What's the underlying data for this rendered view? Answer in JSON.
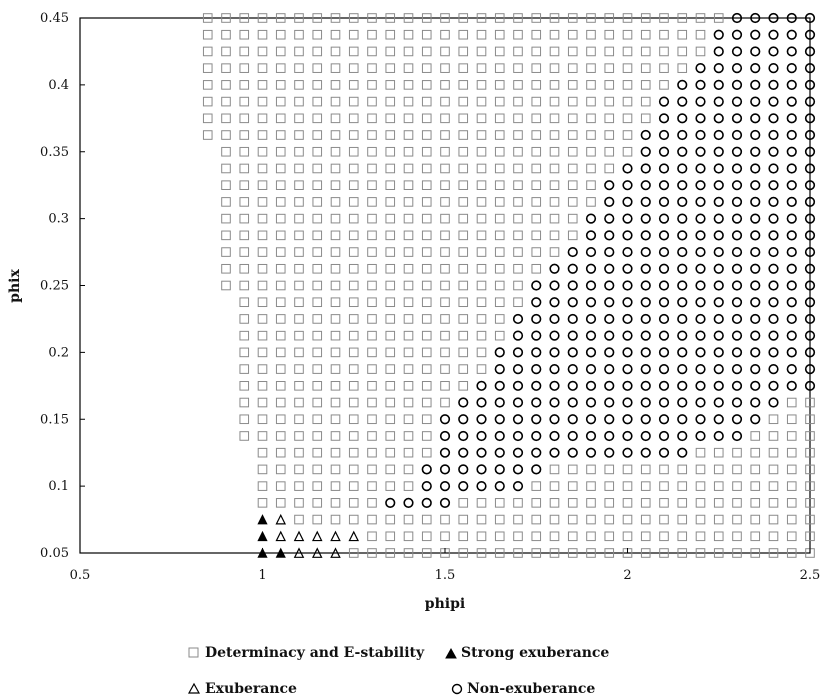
{
  "chart_data": {
    "type": "scatter",
    "title": "",
    "xlabel": "phipi",
    "ylabel": "phix",
    "xlim": [
      0.5,
      2.5
    ],
    "ylim": [
      0.05,
      0.45
    ],
    "xticks": [
      "0.5",
      "1",
      "1.5",
      "2",
      "2.5"
    ],
    "yticks": [
      "0.05",
      "0.1",
      "0.15",
      "0.2",
      "0.25",
      "0.3",
      "0.35",
      "0.4",
      "0.45"
    ],
    "grid": false,
    "legend_position": "bottom",
    "grid_spec": {
      "x_start": 0.85,
      "x_step": 0.05,
      "y_start": 0.05,
      "y_step": 0.0125
    },
    "series": [
      {
        "name": "Determinacy and E-stability",
        "marker": "square",
        "color": "#8a8a8a"
      },
      {
        "name": "Strong exuberance",
        "marker": "filled-triangle",
        "color": "#000000"
      },
      {
        "name": "Exuberance",
        "marker": "triangle",
        "color": "#000000"
      },
      {
        "name": "Non-exuberance",
        "marker": "circle",
        "color": "#000000"
      }
    ],
    "regions": {
      "determinacy_min_x": [
        [
          0.05,
          1.0
        ],
        [
          0.0625,
          1.0
        ],
        [
          0.075,
          1.0
        ],
        [
          0.0875,
          1.0
        ],
        [
          0.1,
          1.0
        ],
        [
          0.1125,
          1.0
        ],
        [
          0.125,
          1.0
        ],
        [
          0.1375,
          0.95
        ],
        [
          0.15,
          0.95
        ],
        [
          0.1625,
          0.95
        ],
        [
          0.175,
          0.95
        ],
        [
          0.1875,
          0.95
        ],
        [
          0.2,
          0.95
        ],
        [
          0.2125,
          0.95
        ],
        [
          0.225,
          0.95
        ],
        [
          0.2375,
          0.95
        ],
        [
          0.25,
          0.9
        ],
        [
          0.2625,
          0.9
        ],
        [
          0.275,
          0.9
        ],
        [
          0.2875,
          0.9
        ],
        [
          0.3,
          0.9
        ],
        [
          0.3125,
          0.9
        ],
        [
          0.325,
          0.9
        ],
        [
          0.3375,
          0.9
        ],
        [
          0.35,
          0.9
        ],
        [
          0.3625,
          0.85
        ],
        [
          0.375,
          0.85
        ],
        [
          0.3875,
          0.85
        ],
        [
          0.4,
          0.85
        ],
        [
          0.4125,
          0.85
        ],
        [
          0.425,
          0.85
        ],
        [
          0.4375,
          0.85
        ],
        [
          0.45,
          0.85
        ]
      ],
      "non_exuberance_x_range": [
        [
          0.0875,
          1.35,
          1.5
        ],
        [
          0.1,
          1.45,
          1.7
        ],
        [
          0.1125,
          1.45,
          1.75
        ],
        [
          0.125,
          1.5,
          2.15
        ],
        [
          0.1375,
          1.5,
          2.3
        ],
        [
          0.15,
          1.5,
          2.35
        ],
        [
          0.1625,
          1.55,
          2.4
        ],
        [
          0.175,
          1.6,
          2.5
        ],
        [
          0.1875,
          1.65,
          2.5
        ],
        [
          0.2,
          1.65,
          2.5
        ],
        [
          0.2125,
          1.7,
          2.5
        ],
        [
          0.225,
          1.7,
          2.5
        ],
        [
          0.2375,
          1.75,
          2.5
        ],
        [
          0.25,
          1.75,
          2.5
        ],
        [
          0.2625,
          1.8,
          2.5
        ],
        [
          0.275,
          1.85,
          2.5
        ],
        [
          0.2875,
          1.9,
          2.5
        ],
        [
          0.3,
          1.9,
          2.5
        ],
        [
          0.3125,
          1.95,
          2.5
        ],
        [
          0.325,
          1.95,
          2.5
        ],
        [
          0.3375,
          2.0,
          2.5
        ],
        [
          0.35,
          2.05,
          2.5
        ],
        [
          0.3625,
          2.05,
          2.5
        ],
        [
          0.375,
          2.1,
          2.5
        ],
        [
          0.3875,
          2.1,
          2.5
        ],
        [
          0.4,
          2.15,
          2.5
        ],
        [
          0.4125,
          2.2,
          2.5
        ],
        [
          0.425,
          2.25,
          2.5
        ],
        [
          0.4375,
          2.25,
          2.5
        ],
        [
          0.45,
          2.3,
          2.5
        ]
      ],
      "exuberance_points": [
        [
          1.05,
          0.075
        ],
        [
          1.05,
          0.0625
        ],
        [
          1.1,
          0.0625
        ],
        [
          1.15,
          0.0625
        ],
        [
          1.2,
          0.0625
        ],
        [
          1.25,
          0.0625
        ],
        [
          1.1,
          0.05
        ],
        [
          1.15,
          0.05
        ],
        [
          1.2,
          0.05
        ]
      ],
      "strong_exuberance_points": [
        [
          1.0,
          0.075
        ],
        [
          1.0,
          0.0625
        ],
        [
          1.0,
          0.05
        ],
        [
          1.05,
          0.05
        ]
      ]
    }
  }
}
